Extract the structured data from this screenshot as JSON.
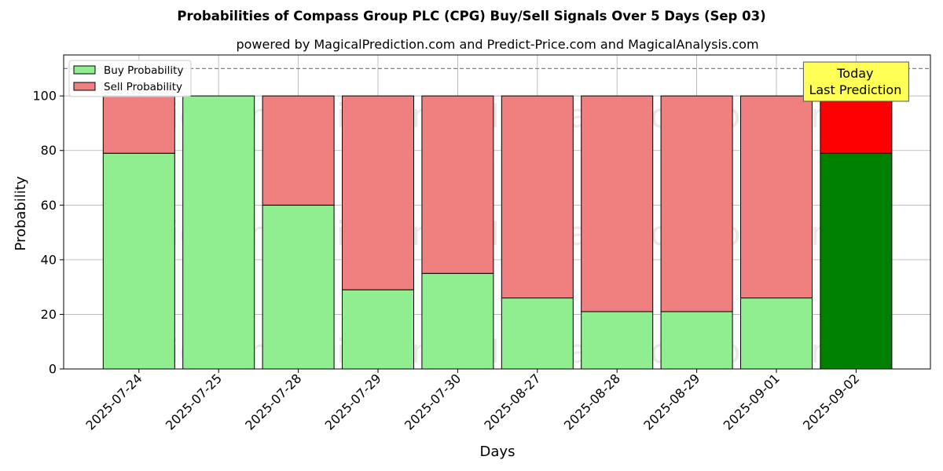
{
  "chart_data": {
    "type": "bar",
    "stacked": true,
    "title": "Probabilities of Compass Group PLC (CPG) Buy/Sell Signals Over 5 Days (Sep 03)",
    "subtitle": "powered by MagicalPrediction.com and Predict-Price.com and MagicalAnalysis.com",
    "xlabel": "Days",
    "ylabel": "Probability",
    "ylim": [
      0,
      115
    ],
    "yticks": [
      0,
      20,
      40,
      60,
      80,
      100
    ],
    "grid": true,
    "legend_position": "top-left",
    "categories": [
      "2025-07-24",
      "2025-07-25",
      "2025-07-28",
      "2025-07-29",
      "2025-07-30",
      "2025-08-27",
      "2025-08-28",
      "2025-08-29",
      "2025-09-01",
      "2025-09-02"
    ],
    "series": [
      {
        "name": "Buy Probability",
        "color": "#90ee90",
        "values": [
          79,
          100,
          60,
          29,
          35,
          26,
          21,
          21,
          26,
          79
        ]
      },
      {
        "name": "Sell Probability",
        "color": "#f08080",
        "values": [
          21,
          0,
          40,
          71,
          65,
          74,
          79,
          79,
          74,
          21
        ]
      }
    ],
    "highlight": {
      "index": 9,
      "buy_color": "#008000",
      "sell_color": "#ff0000"
    },
    "reference_line": {
      "y": 110,
      "style": "dashed",
      "color": "#808080"
    },
    "annotation": {
      "lines": [
        "Today",
        "Last Prediction"
      ],
      "background": "#ffff55"
    },
    "watermarks": [
      "MagicalAnalysis.com",
      "MagicalPrediction.com"
    ]
  }
}
